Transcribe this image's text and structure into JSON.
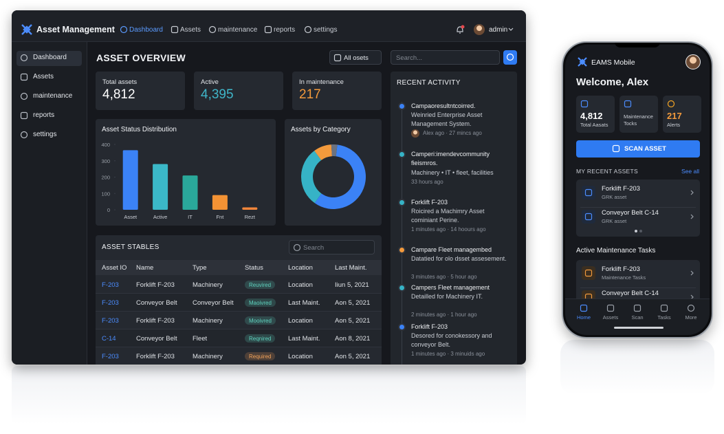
{
  "app": {
    "brand": "Asset Management",
    "nav": [
      "Dashboard",
      "Assets",
      "maintenance",
      "reports",
      "settings"
    ],
    "user": "admin"
  },
  "sidebar": [
    "Dashboard",
    "Assets",
    "maintenance",
    "reports",
    "settings"
  ],
  "overview": {
    "title": "ASSET OVERVIEW",
    "filter": "All osets",
    "search_placeholder": "Search...",
    "kpis": [
      {
        "label": "Total assets",
        "value": "4,812",
        "color": "#ffffff"
      },
      {
        "label": "Active",
        "value": "4,395",
        "color": "#3fb6c9"
      },
      {
        "label": "In maintenance",
        "value": "217",
        "color": "#f39a3c"
      }
    ]
  },
  "status_chart": {
    "type": "bar",
    "title": "Asset Status Distribution",
    "categories": [
      "Asset",
      "Active",
      "IT",
      "Fnt",
      "Rezt"
    ],
    "values": [
      365,
      280,
      210,
      90,
      15
    ],
    "colors": [
      "#3b82f6",
      "#3bb8c8",
      "#2aa89a",
      "#f39234",
      "#f0853a"
    ],
    "ylim": [
      0,
      400
    ],
    "yticks": [
      0,
      100,
      200,
      300,
      400
    ]
  },
  "category_chart": {
    "type": "pie",
    "title": "Assets by Category",
    "values": [
      58,
      30,
      9,
      3
    ],
    "colors": [
      "#3b82f6",
      "#36b3c6",
      "#f39a3c",
      "#6b7280"
    ]
  },
  "table": {
    "title": "ASSET STABLES",
    "search_placeholder": "Search",
    "columns": [
      "Asset IO",
      "Name",
      "Type",
      "Status",
      "Location",
      "Last Maint."
    ],
    "rows": [
      [
        "F-203",
        "Forklift F-203",
        "Machinery",
        "Reuvired",
        "Location",
        "Iiun 5, 2021"
      ],
      [
        "F-203",
        "Conveyor Belt",
        "Conveyor Belt",
        "Maoivred",
        "Last Maint.",
        "Aon 5, 2021"
      ],
      [
        "F-203",
        "Forklift F-203",
        "Machinery",
        "Mooivred",
        "Location",
        "Aon 5, 2021"
      ],
      [
        "C-14",
        "Conveyor Belt",
        "Fleet",
        "Reqnired",
        "Last Maint.",
        "Aon 8, 2021"
      ],
      [
        "F-203",
        "Forklift F-203",
        "Machinery",
        "Required",
        "Location",
        "Aon 5, 2021"
      ]
    ],
    "status_colors": [
      "#5fd3bf",
      "#5fd3bf",
      "#5fd3bf",
      "#5fd3bf",
      "#f3a25a"
    ]
  },
  "activity": {
    "title": "RECENT ACTIVITY",
    "items": [
      {
        "title": "Campaoresultntcoirred.",
        "text": "Weinried Enterprise Asset Management System.",
        "meta": "Alex ago · 27 mincs ago",
        "color": "#3b82f6"
      },
      {
        "title": "Camperi:imendevcommunity fieismros.",
        "text": "Machinery • IT • fleet, facilities",
        "meta": "33 hours ago",
        "color": "#36b3c6"
      },
      {
        "title": "Forklift F-203",
        "text": "Roicired a Machimry Asset cominiant Perine.",
        "meta": "1 minutes ago · 14 hoours ago",
        "color": "#36b3c6"
      },
      {
        "title": "Campare Fleet managembed",
        "text": "Datatied for olo dsset assesement.",
        "meta": "3 minutes ago · 5 hour ago",
        "color": "#f39a3c"
      },
      {
        "title": "Campers Fleet management",
        "text": "Detailled for Machinery IT.",
        "meta": "2 minutes ago · 1 hour ago",
        "color": "#36b3c6"
      },
      {
        "title": "Forklift F-203",
        "text": "Desored for conokessory and conveyor Belt.",
        "meta": "1 minutes ago · 3 minuids ago",
        "color": "#3b82f6"
      }
    ]
  },
  "mobile": {
    "brand": "EAMS Mobile",
    "greeting": "Welcome, Alex",
    "cards": [
      {
        "value": "4,812",
        "label": "Total Aasats",
        "color": "#ffffff"
      },
      {
        "label": "Maintenance Tocks"
      },
      {
        "value": "217",
        "label": "Alerts",
        "color": "#f39a3c"
      }
    ],
    "button": "SCAN ASSET",
    "recent_title": "MY RECENT ASSETS",
    "see_all": "See all",
    "assets": [
      {
        "name": "Forklift F-203",
        "sub": "GRK asset"
      },
      {
        "name": "Conveyor Belt C-14",
        "sub": "GRK asset"
      }
    ],
    "tasks_title": "Active Maintenance Tasks",
    "tasks": [
      {
        "name": "Forklift F-203",
        "sub": "Maintenance Tasks"
      },
      {
        "name": "Conveyor Belt C-14"
      }
    ],
    "tabs": [
      "Home",
      "Assets",
      "Scan",
      "Tasks",
      "More"
    ]
  }
}
